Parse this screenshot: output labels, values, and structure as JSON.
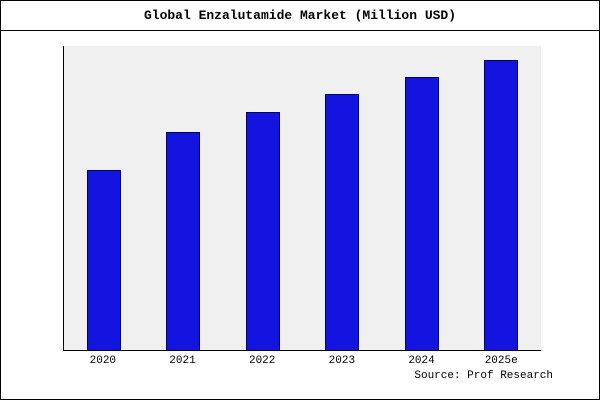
{
  "title": "Global Enzalutamide Market (Million USD)",
  "source": "Source: Prof Research",
  "colors": {
    "bar_fill": "#1414e0",
    "bar_border": "#000066",
    "plot_bg": "#f0f0f0",
    "axis": "#000000"
  },
  "chart_data": {
    "type": "bar",
    "categories": [
      "2020",
      "2021",
      "2022",
      "2023",
      "2024",
      "2025e"
    ],
    "values": [
      62,
      75,
      82,
      88,
      94,
      100
    ],
    "title": "Global Enzalutamide Market (Million USD)",
    "xlabel": "",
    "ylabel": "",
    "ylim": [
      0,
      105
    ],
    "grid": false,
    "legend": false
  }
}
